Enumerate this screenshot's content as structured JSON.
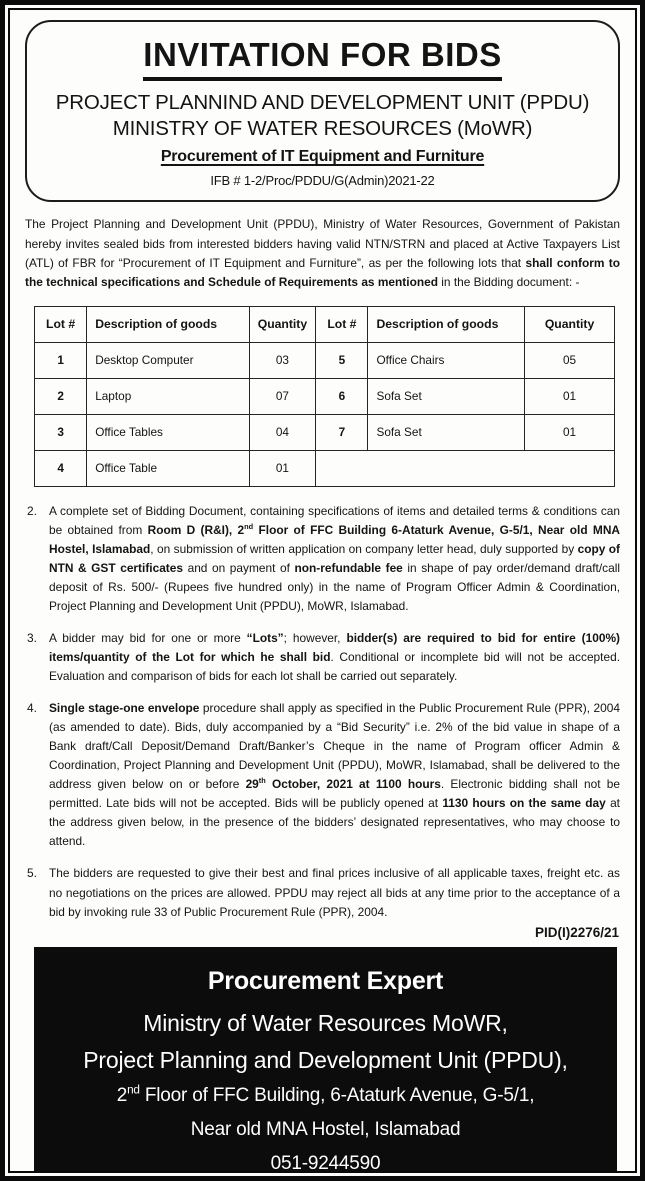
{
  "header": {
    "title": "INVITATION FOR BIDS",
    "org": "PROJECT PLANNIND AND DEVELOPMENT UNIT (PPDU) MINISTRY OF WATER RESOURCES (MoWR)",
    "subject": "Procurement of IT Equipment and Furniture",
    "ifb": "IFB # 1-2/Proc/PDDU/G(Admin)2021-22"
  },
  "intro": {
    "segments": [
      {
        "t": "The Project Planning and Development Unit (PPDU), Ministry of Water Resources, Government of Pakistan hereby invites sealed bids from interested bidders having valid NTN/STRN and placed at Active Taxpayers List (ATL) of FBR for “Procurement of IT Equipment and Furniture”, as per the following lots that "
      },
      {
        "t": "shall conform to the technical specifications and Schedule of Requirements as mentioned",
        "b": true
      },
      {
        "t": " in the Bidding document: -"
      }
    ]
  },
  "table": {
    "headers": [
      "Lot #",
      "Description of goods",
      "Quantity",
      "Lot #",
      "Description of goods",
      "Quantity"
    ],
    "rows": [
      [
        "1",
        "Desktop Computer",
        "03",
        "5",
        "Office Chairs",
        "05"
      ],
      [
        "2",
        "Laptop",
        "07",
        "6",
        "Sofa Set",
        "01"
      ],
      [
        "3",
        "Office Tables",
        "04",
        "7",
        "Sofa Set",
        "01"
      ],
      [
        "4",
        "Office Table",
        "01",
        "",
        "",
        ""
      ]
    ]
  },
  "paragraphs": [
    {
      "num": "2.",
      "segments": [
        {
          "t": "A complete set of Bidding Document, containing specifications of items and detailed terms & conditions can be obtained from "
        },
        {
          "t": "Room D (R&I), 2",
          "b": true
        },
        {
          "t": "nd",
          "b": true,
          "sup": true
        },
        {
          "t": " Floor of FFC Building 6-Ataturk Avenue, G-5/1, Near old MNA Hostel, Islamabad",
          "b": true
        },
        {
          "t": ", on submission of written application on company letter head, duly supported by "
        },
        {
          "t": "copy of NTN & GST certificates",
          "b": true
        },
        {
          "t": " and on payment of "
        },
        {
          "t": "non-refundable fee",
          "b": true
        },
        {
          "t": " in shape of pay order/demand draft/call deposit of Rs. 500/- (Rupees five hundred only) in the name of Program Officer Admin & Coordination, Project Planning and Development Unit (PPDU), MoWR, Islamabad."
        }
      ]
    },
    {
      "num": "3.",
      "segments": [
        {
          "t": "A bidder may bid for one or more "
        },
        {
          "t": "“Lots”",
          "b": true
        },
        {
          "t": "; however, "
        },
        {
          "t": "bidder(s) are required to bid for entire (100%) items/quantity of the Lot for which he shall bid",
          "b": true
        },
        {
          "t": ". Conditional or incomplete bid will not be accepted. Evaluation and comparison of bids for each lot shall be carried out separately."
        }
      ]
    },
    {
      "num": "4.",
      "segments": [
        {
          "t": "Single stage-one envelope",
          "b": true
        },
        {
          "t": " procedure shall apply as specified in the Public Procurement Rule (PPR), 2004 (as amended to date). Bids, duly accompanied by a “Bid Security” i.e. 2% of the bid value in shape of a Bank draft/Call Deposit/Demand Draft/Banker’s Cheque in the name of Program officer Admin & Coordination, Project Planning and Development Unit (PPDU), MoWR, Islamabad, shall be delivered to the address given below on or before "
        },
        {
          "t": "29",
          "b": true
        },
        {
          "t": "th",
          "b": true,
          "sup": true
        },
        {
          "t": " October, 2021 at 1100 hours",
          "b": true
        },
        {
          "t": ". Electronic bidding shall not be permitted. Late bids will not be accepted. Bids will be publicly opened at "
        },
        {
          "t": "1130 hours on the same day",
          "b": true
        },
        {
          "t": " at the address given below, in the presence of the bidders’ designated representatives, who may choose to attend."
        }
      ]
    },
    {
      "num": "5.",
      "segments": [
        {
          "t": "The bidders are requested to give their best and final prices inclusive of all applicable taxes, freight etc. as no negotiations on the prices are allowed. PPDU may reject all bids at any time prior to the acceptance of a bid by invoking rule 33 of Public Procurement Rule (PPR), 2004."
        }
      ]
    }
  ],
  "pid": "PID(I)2276/21",
  "footer": {
    "lines": [
      {
        "style": "f1",
        "segments": [
          {
            "t": "Procurement Expert",
            "b": true
          }
        ]
      },
      {
        "style": "f2",
        "segments": [
          {
            "t": "Ministry of Water Resources MoWR,"
          }
        ]
      },
      {
        "style": "f2",
        "segments": [
          {
            "t": "Project Planning and Development Unit (PPDU),"
          }
        ]
      },
      {
        "style": "f3",
        "segments": [
          {
            "t": "2"
          },
          {
            "t": "nd",
            "sup": true
          },
          {
            "t": " Floor of FFC Building, 6-Ataturk Avenue, G-5/1,"
          }
        ]
      },
      {
        "style": "f3",
        "segments": [
          {
            "t": "Near old MNA Hostel, Islamabad"
          }
        ]
      },
      {
        "style": "f3",
        "segments": [
          {
            "t": "051-9244590"
          }
        ]
      }
    ]
  }
}
